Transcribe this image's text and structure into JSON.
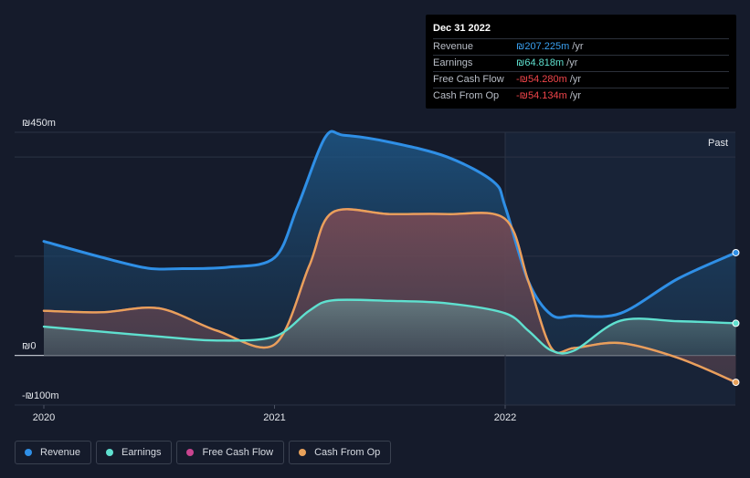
{
  "tooltip": {
    "date": "Dec 31 2022",
    "rows": [
      {
        "label": "Revenue",
        "value": "₪207.225m",
        "unit": "/yr",
        "color": "#3aa0f0"
      },
      {
        "label": "Earnings",
        "value": "₪64.818m",
        "unit": "/yr",
        "color": "#5fe0cf"
      },
      {
        "label": "Free Cash Flow",
        "value": "-₪54.280m",
        "unit": "/yr",
        "color": "#f0454a"
      },
      {
        "label": "Cash From Op",
        "value": "-₪54.134m",
        "unit": "/yr",
        "color": "#f0454a"
      }
    ]
  },
  "legend": [
    {
      "label": "Revenue",
      "color": "#2f8fe6"
    },
    {
      "label": "Earnings",
      "color": "#5fe0cf"
    },
    {
      "label": "Free Cash Flow",
      "color": "#c9448f"
    },
    {
      "label": "Cash From Op",
      "color": "#e8a15a"
    }
  ],
  "chart_data": {
    "type": "line",
    "ylim": [
      -100,
      450
    ],
    "y_tick_labels": [
      {
        "label": "₪450m",
        "value": 450
      },
      {
        "label": "₪0",
        "value": 0
      },
      {
        "label": "-₪100m",
        "value": -100
      }
    ],
    "x_tick_labels": [
      {
        "label": "2020",
        "value": 2020.0
      },
      {
        "label": "2021",
        "value": 2021.0
      },
      {
        "label": "2022",
        "value": 2022.0
      }
    ],
    "xlim": [
      2019.88,
      2023.0
    ],
    "past_label": "Past",
    "past_start": 2022.0,
    "series": [
      {
        "name": "Revenue",
        "color": "#2f8fe6",
        "x": [
          2020.0,
          2020.25,
          2020.45,
          2020.6,
          2020.8,
          2021.0,
          2021.1,
          2021.22,
          2021.3,
          2021.5,
          2021.75,
          2021.95,
          2022.0,
          2022.1,
          2022.2,
          2022.3,
          2022.5,
          2022.75,
          2023.0
        ],
        "y": [
          230,
          198,
          176,
          175,
          178,
          197,
          300,
          440,
          444,
          430,
          400,
          350,
          300,
          150,
          82,
          80,
          85,
          155,
          207.225
        ]
      },
      {
        "name": "Earnings",
        "color": "#5fe0cf",
        "x": [
          2020.0,
          2020.25,
          2020.5,
          2020.75,
          2021.0,
          2021.15,
          2021.25,
          2021.5,
          2021.75,
          2022.0,
          2022.1,
          2022.2,
          2022.3,
          2022.5,
          2022.75,
          2023.0
        ],
        "y": [
          58,
          48,
          38,
          30,
          38,
          90,
          111,
          110,
          105,
          85,
          50,
          10,
          10,
          70,
          69,
          64.818
        ]
      },
      {
        "name": "Free Cash Flow",
        "color": "#c9448f",
        "x": [
          2020.0,
          2020.25,
          2020.5,
          2020.75,
          2021.0,
          2021.15,
          2021.25,
          2021.5,
          2021.75,
          2022.0,
          2022.1,
          2022.2,
          2022.3,
          2022.5,
          2022.75,
          2023.0
        ],
        "y": [
          90,
          87,
          95,
          50,
          22,
          180,
          288,
          285,
          285,
          275,
          150,
          15,
          15,
          25,
          -5,
          -54.28
        ]
      },
      {
        "name": "Cash From Op",
        "color": "#e8a15a",
        "x": [
          2020.0,
          2020.25,
          2020.5,
          2020.75,
          2021.0,
          2021.15,
          2021.25,
          2021.5,
          2021.75,
          2022.0,
          2022.1,
          2022.2,
          2022.3,
          2022.5,
          2022.75,
          2023.0
        ],
        "y": [
          90,
          87,
          95,
          50,
          22,
          180,
          288,
          285,
          285,
          275,
          150,
          15,
          15,
          25,
          -5,
          -54.134
        ]
      }
    ]
  }
}
